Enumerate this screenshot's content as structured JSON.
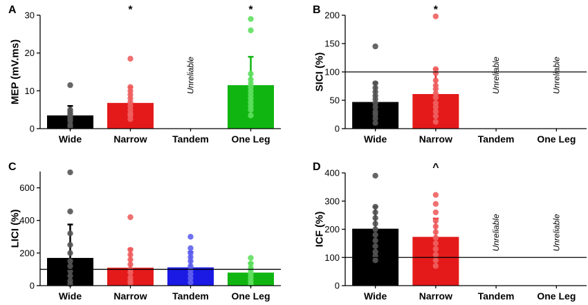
{
  "chart_data": [
    {
      "panel": "A",
      "type": "bar",
      "ylabel": "MEP (mV.ms)",
      "ylim": [
        0,
        30
      ],
      "yticks": [
        0,
        10,
        20,
        30
      ],
      "categories": [
        "Wide",
        "Narrow",
        "Tandem",
        "One Leg"
      ],
      "values": [
        3.5,
        6.8,
        null,
        11.5
      ],
      "errors": [
        2.5,
        4.2,
        null,
        7.5
      ],
      "colors": [
        "#000000",
        "#e41a1a",
        null,
        "#11b511"
      ],
      "dot_colors": [
        "#555555",
        "#f06060",
        null,
        "#5fe05f"
      ],
      "points": [
        [
          0.5,
          1.0,
          2.0,
          2.5,
          3.0,
          3.5,
          4.0,
          4.5,
          5.0,
          11.5
        ],
        [
          2.5,
          3.5,
          4.0,
          5.0,
          6.0,
          7.0,
          8.0,
          9.0,
          10.0,
          11.0,
          18.5
        ],
        [],
        [
          3.5,
          5.0,
          6.0,
          7.0,
          8.0,
          9.0,
          10.0,
          11.0,
          12.0,
          13.0,
          14.5,
          26.0,
          29.0
        ]
      ],
      "unreliable": [
        false,
        false,
        true,
        false
      ],
      "significance": [
        "",
        "*",
        "",
        "*"
      ],
      "reference_line": null
    },
    {
      "panel": "B",
      "type": "bar",
      "ylabel": "SICI (%)",
      "ylim": [
        0,
        200
      ],
      "yticks": [
        0,
        50,
        100,
        150,
        200
      ],
      "categories": [
        "Wide",
        "Narrow",
        "Tandem",
        "One Leg"
      ],
      "values": [
        47,
        61,
        null,
        null
      ],
      "errors": [
        34,
        44,
        null,
        null
      ],
      "colors": [
        "#000000",
        "#e41a1a",
        null,
        null
      ],
      "dot_colors": [
        "#555555",
        "#f06060",
        null,
        null
      ],
      "points": [
        [
          10,
          18,
          25,
          30,
          38,
          45,
          52,
          58,
          65,
          72,
          80,
          145
        ],
        [
          12,
          22,
          30,
          38,
          45,
          55,
          62,
          70,
          76,
          85,
          98,
          105,
          198
        ],
        [],
        []
      ],
      "unreliable": [
        false,
        false,
        true,
        true
      ],
      "significance": [
        "",
        "*",
        "",
        ""
      ],
      "reference_line": 100
    },
    {
      "panel": "C",
      "type": "bar",
      "ylabel": "LICI (%)",
      "ylim": [
        0,
        700
      ],
      "yticks": [
        0,
        200,
        400,
        600
      ],
      "categories": [
        "Wide",
        "Narrow",
        "Tandem",
        "One Leg"
      ],
      "values": [
        170,
        110,
        112,
        80
      ],
      "errors": [
        205,
        115,
        95,
        60
      ],
      "colors": [
        "#000000",
        "#e41a1a",
        "#1a1ae4",
        "#11b511"
      ],
      "dot_colors": [
        "#555555",
        "#f06060",
        "#6060f0",
        "#5fe05f"
      ],
      "points": [
        [
          10,
          30,
          60,
          90,
          120,
          150,
          200,
          250,
          320,
          455,
          695
        ],
        [
          15,
          30,
          50,
          80,
          100,
          130,
          160,
          190,
          220,
          420
        ],
        [
          20,
          45,
          70,
          95,
          120,
          150,
          175,
          200,
          230,
          300
        ],
        [
          10,
          30,
          50,
          70,
          90,
          110,
          135,
          170
        ]
      ],
      "unreliable": [
        false,
        false,
        false,
        false
      ],
      "significance": [
        "",
        "",
        "",
        ""
      ],
      "reference_line": 100
    },
    {
      "panel": "D",
      "type": "bar",
      "ylabel": "ICF (%)",
      "ylim": [
        0,
        400
      ],
      "yticks": [
        0,
        100,
        200,
        300,
        400
      ],
      "categories": [
        "Wide",
        "Narrow",
        "Tandem",
        "One Leg"
      ],
      "values": [
        202,
        173,
        null,
        null
      ],
      "errors": [
        78,
        65,
        null,
        null
      ],
      "colors": [
        "#000000",
        "#e41a1a",
        null,
        null
      ],
      "dot_colors": [
        "#555555",
        "#f06060",
        null,
        null
      ],
      "points": [
        [
          90,
          105,
          120,
          140,
          160,
          180,
          200,
          220,
          240,
          260,
          280,
          390
        ],
        [
          70,
          90,
          110,
          130,
          150,
          170,
          190,
          210,
          230,
          260,
          290,
          322
        ],
        [],
        []
      ],
      "unreliable": [
        false,
        false,
        true,
        true
      ],
      "significance": [
        "",
        "^",
        "",
        ""
      ],
      "reference_line": 100
    }
  ],
  "unreliable_text": "Unreliable"
}
